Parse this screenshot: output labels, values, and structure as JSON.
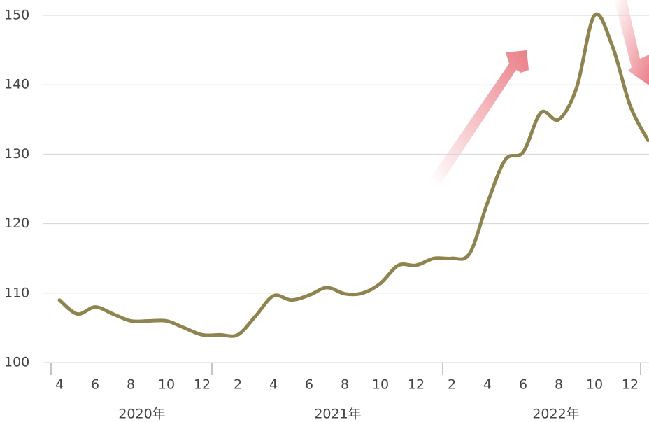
{
  "chart_data": {
    "type": "line",
    "categories": [
      "4",
      null,
      "6",
      null,
      "8",
      null,
      "10",
      null,
      "12",
      null,
      "2",
      null,
      "4",
      null,
      "6",
      null,
      "8",
      null,
      "10",
      null,
      "12",
      null,
      "2",
      null,
      "4",
      null,
      "6",
      null,
      "8",
      null,
      "10",
      null,
      "12",
      null
    ],
    "years": [
      "2020年",
      "2021年",
      "2022年"
    ],
    "series": [
      {
        "color": "#8f8350",
        "values": [
          109,
          107,
          108,
          107,
          106,
          106,
          106,
          105,
          104,
          104,
          104,
          106.7,
          109.6,
          109,
          109.7,
          110.8,
          109.9,
          110,
          111.4,
          114,
          114,
          115,
          115,
          115.7,
          123,
          129.2,
          130.3,
          136,
          135,
          139.6,
          150,
          145.6,
          137,
          132
        ]
      }
    ],
    "ylim": [
      100,
      150
    ],
    "yticks": [
      100,
      110,
      120,
      130,
      140,
      150
    ],
    "grid": true
  }
}
